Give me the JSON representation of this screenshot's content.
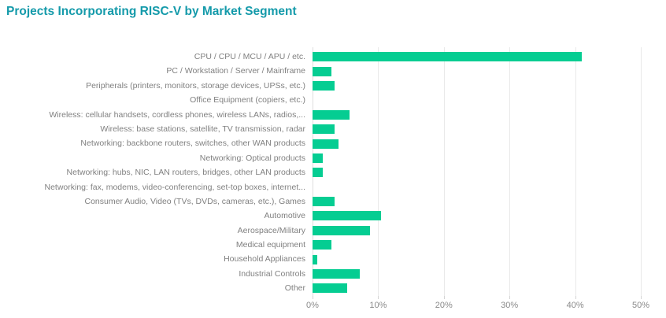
{
  "chart_data": {
    "type": "bar",
    "orientation": "horizontal",
    "title": "Projects Incorporating RISC-V by Market Segment",
    "title_color": "#149AAA",
    "bar_color": "#05CD92",
    "label_color": "#808080",
    "grid": "vertical",
    "legend": "none",
    "xlim": [
      0,
      50
    ],
    "x_ticks": [
      "0%",
      "10%",
      "20%",
      "30%",
      "40%",
      "50%"
    ],
    "x_tick_values": [
      0,
      10,
      20,
      30,
      40,
      50
    ],
    "unit": "%",
    "categories": [
      "CPU / CPU / MCU / APU / etc.",
      "PC / Workstation / Server / Mainframe",
      "Peripherals (printers, monitors, storage devices, UPSs, etc.)",
      "Office Equipment (copiers, etc.)",
      "Wireless: cellular handsets, cordless phones, wireless LANs, radios,...",
      "Wireless: base stations, satellite, TV transmission, radar",
      "Networking: backbone routers, switches, other WAN products",
      "Networking: Optical products",
      "Networking: hubs, NIC, LAN routers, bridges, other LAN products",
      "Networking: fax, modems, video-conferencing, set-top boxes, internet...",
      "Consumer Audio, Video (TVs, DVDs, cameras, etc.), Games",
      "Automotive",
      "Aerospace/Military",
      "Medical equipment",
      "Household Appliances",
      "Industrial Controls",
      "Other"
    ],
    "values": [
      41.0,
      2.9,
      3.4,
      0,
      5.6,
      3.3,
      3.9,
      1.6,
      1.6,
      0,
      3.4,
      10.4,
      8.8,
      2.9,
      0.7,
      7.2,
      5.3
    ]
  }
}
